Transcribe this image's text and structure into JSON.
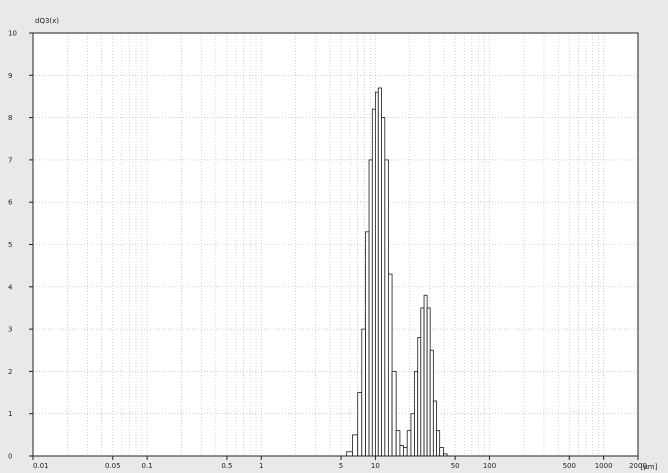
{
  "chart_data": {
    "type": "bar",
    "ylabel": "dQ3(x)",
    "xlabel": "[µm]",
    "xscale": "log",
    "xlim": [
      0.01,
      2000
    ],
    "ylim": [
      0,
      10
    ],
    "grid": true,
    "x_ticks": [
      {
        "value": 0.01,
        "label": "0.01"
      },
      {
        "value": 0.05,
        "label": "0.05"
      },
      {
        "value": 0.1,
        "label": "0.1"
      },
      {
        "value": 0.5,
        "label": "0.5"
      },
      {
        "value": 1,
        "label": "1"
      },
      {
        "value": 5,
        "label": "5"
      },
      {
        "value": 10,
        "label": "10"
      },
      {
        "value": 50,
        "label": "50"
      },
      {
        "value": 100,
        "label": "100"
      },
      {
        "value": 500,
        "label": "500"
      },
      {
        "value": 1000,
        "label": "1000"
      },
      {
        "value": 2000,
        "label": "2000"
      }
    ],
    "y_ticks": [
      {
        "value": 0,
        "label": "0"
      },
      {
        "value": 1,
        "label": "1"
      },
      {
        "value": 2,
        "label": "2"
      },
      {
        "value": 3,
        "label": "3"
      },
      {
        "value": 4,
        "label": "4"
      },
      {
        "value": 5,
        "label": "5"
      },
      {
        "value": 6,
        "label": "6"
      },
      {
        "value": 7,
        "label": "7"
      },
      {
        "value": 8,
        "label": "8"
      },
      {
        "value": 9,
        "label": "9"
      },
      {
        "value": 10,
        "label": "10"
      }
    ],
    "bins": [
      {
        "from": 5.6,
        "to": 6.3,
        "value": 0.1
      },
      {
        "from": 6.3,
        "to": 7.0,
        "value": 0.5
      },
      {
        "from": 7.0,
        "to": 7.6,
        "value": 1.5
      },
      {
        "from": 7.6,
        "to": 8.2,
        "value": 3.0
      },
      {
        "from": 8.2,
        "to": 8.8,
        "value": 5.3
      },
      {
        "from": 8.8,
        "to": 9.4,
        "value": 7.0
      },
      {
        "from": 9.4,
        "to": 10.0,
        "value": 8.2
      },
      {
        "from": 10.0,
        "to": 10.6,
        "value": 8.6
      },
      {
        "from": 10.6,
        "to": 11.3,
        "value": 8.7
      },
      {
        "from": 11.3,
        "to": 12.1,
        "value": 8.0
      },
      {
        "from": 12.1,
        "to": 13.0,
        "value": 7.0
      },
      {
        "from": 13.0,
        "to": 14.0,
        "value": 4.3
      },
      {
        "from": 14.0,
        "to": 15.2,
        "value": 2.0
      },
      {
        "from": 15.2,
        "to": 16.4,
        "value": 0.6
      },
      {
        "from": 16.4,
        "to": 17.6,
        "value": 0.25
      },
      {
        "from": 17.6,
        "to": 19.0,
        "value": 0.2
      },
      {
        "from": 19.0,
        "to": 20.5,
        "value": 0.6
      },
      {
        "from": 20.5,
        "to": 22.0,
        "value": 1.0
      },
      {
        "from": 22.0,
        "to": 23.5,
        "value": 2.0
      },
      {
        "from": 23.5,
        "to": 25.0,
        "value": 2.8
      },
      {
        "from": 25.0,
        "to": 26.7,
        "value": 3.5
      },
      {
        "from": 26.7,
        "to": 28.4,
        "value": 3.8
      },
      {
        "from": 28.4,
        "to": 30.2,
        "value": 3.5
      },
      {
        "from": 30.2,
        "to": 32.2,
        "value": 2.5
      },
      {
        "from": 32.2,
        "to": 34.3,
        "value": 1.3
      },
      {
        "from": 34.3,
        "to": 36.6,
        "value": 0.6
      },
      {
        "from": 36.6,
        "to": 39.5,
        "value": 0.2
      },
      {
        "from": 39.5,
        "to": 42.5,
        "value": 0.05
      }
    ]
  }
}
